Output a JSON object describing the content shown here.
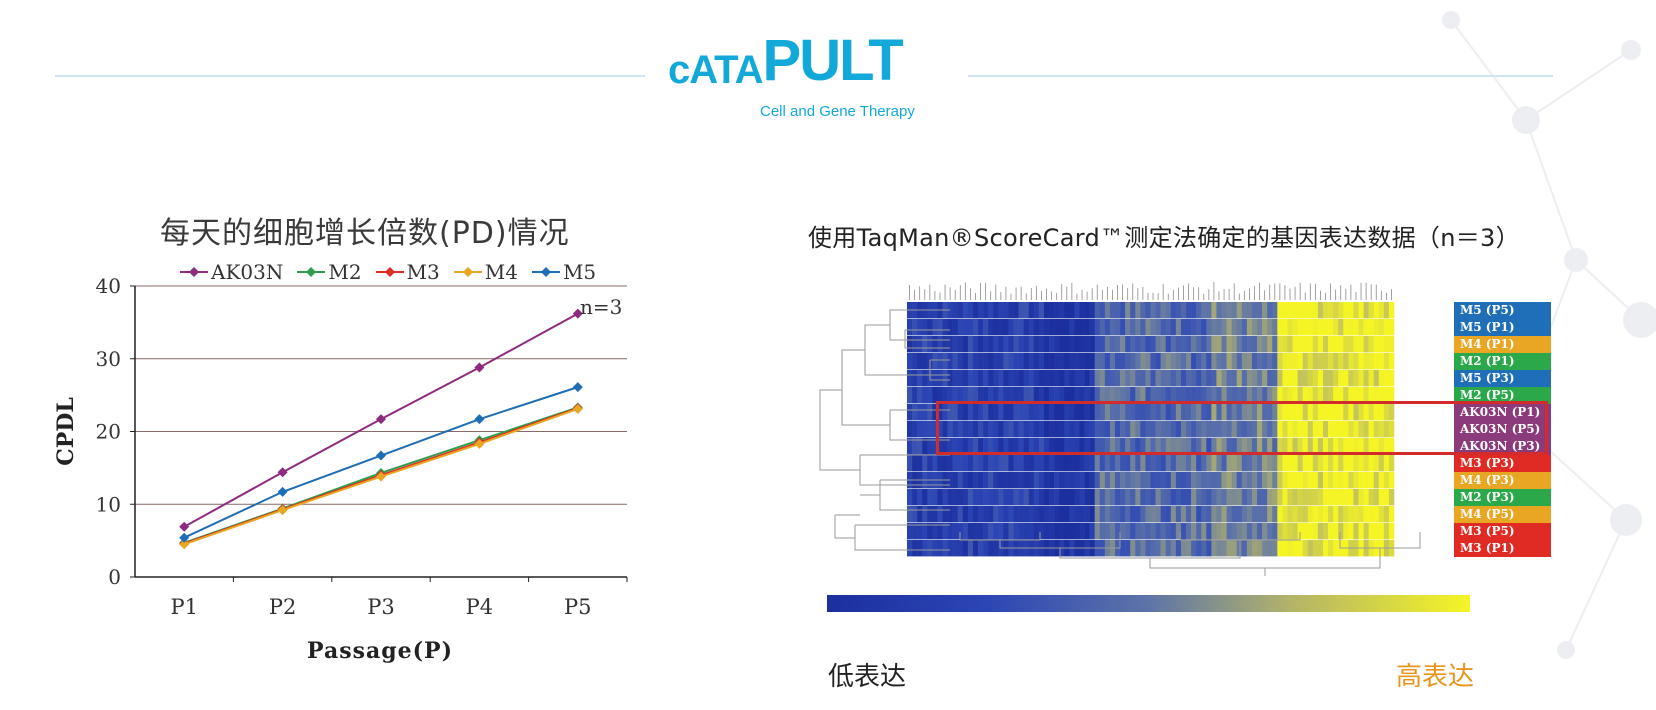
{
  "brand": {
    "name_small": "cATA",
    "name_large": "PULT",
    "tagline": "Cell and Gene Therapy",
    "color": "#12a9d8"
  },
  "left_chart": {
    "title": "每天的细胞增长倍数(PD)情况",
    "annotation": "n=3"
  },
  "right_panel": {
    "title": "使用TaqMan®ScoreCard™测定法确定的基因表达数据（n＝3）",
    "scale_low": "低表达",
    "scale_high": "高表达",
    "row_labels": [
      {
        "text": "M5 (P5)",
        "color": "#1f6fb8"
      },
      {
        "text": "M5 (P1)",
        "color": "#1f6fb8"
      },
      {
        "text": "M4 (P1)",
        "color": "#e8a623"
      },
      {
        "text": "M2 (P1)",
        "color": "#2aa84a"
      },
      {
        "text": "M5 (P3)",
        "color": "#1f6fb8"
      },
      {
        "text": "M2 (P5)",
        "color": "#2aa84a"
      },
      {
        "text": "AK03N (P1)",
        "color": "#8b3a7c"
      },
      {
        "text": "AK03N (P5)",
        "color": "#8b3a7c"
      },
      {
        "text": "AK03N (P3)",
        "color": "#8b3a7c"
      },
      {
        "text": "M3 (P3)",
        "color": "#e02a24"
      },
      {
        "text": "M4 (P3)",
        "color": "#e8a623"
      },
      {
        "text": "M2 (P3)",
        "color": "#2aa84a"
      },
      {
        "text": "M4 (P5)",
        "color": "#e8a623"
      },
      {
        "text": "M3 (P5)",
        "color": "#e02a24"
      },
      {
        "text": "M3 (P1)",
        "color": "#e02a24"
      }
    ],
    "highlight_color": "#d22b2b"
  },
  "chart_data": {
    "type": "line",
    "title": "每天的细胞增长倍数(PD)情况",
    "xlabel": "Passage(P)",
    "ylabel": "CPDL",
    "categories": [
      "P1",
      "P2",
      "P3",
      "P4",
      "P5"
    ],
    "ylim": [
      0,
      40
    ],
    "yticks": [
      0,
      10,
      20,
      30,
      40
    ],
    "grid": "horizontal",
    "legend_position": "top",
    "series": [
      {
        "name": "AK03N",
        "color": "#8e2a7f",
        "values": [
          6.9,
          14.4,
          21.7,
          28.8,
          36.2
        ]
      },
      {
        "name": "M2",
        "color": "#2f9e4c",
        "values": [
          4.7,
          9.4,
          14.3,
          18.8,
          23.3
        ]
      },
      {
        "name": "M3",
        "color": "#e02a24",
        "values": [
          4.6,
          9.3,
          14.0,
          18.5,
          23.2
        ]
      },
      {
        "name": "M4",
        "color": "#e8a623",
        "values": [
          4.5,
          9.2,
          13.8,
          18.3,
          23.1
        ]
      },
      {
        "name": "M5",
        "color": "#1f6db5",
        "values": [
          5.4,
          11.7,
          16.7,
          21.7,
          26.1
        ]
      }
    ]
  }
}
